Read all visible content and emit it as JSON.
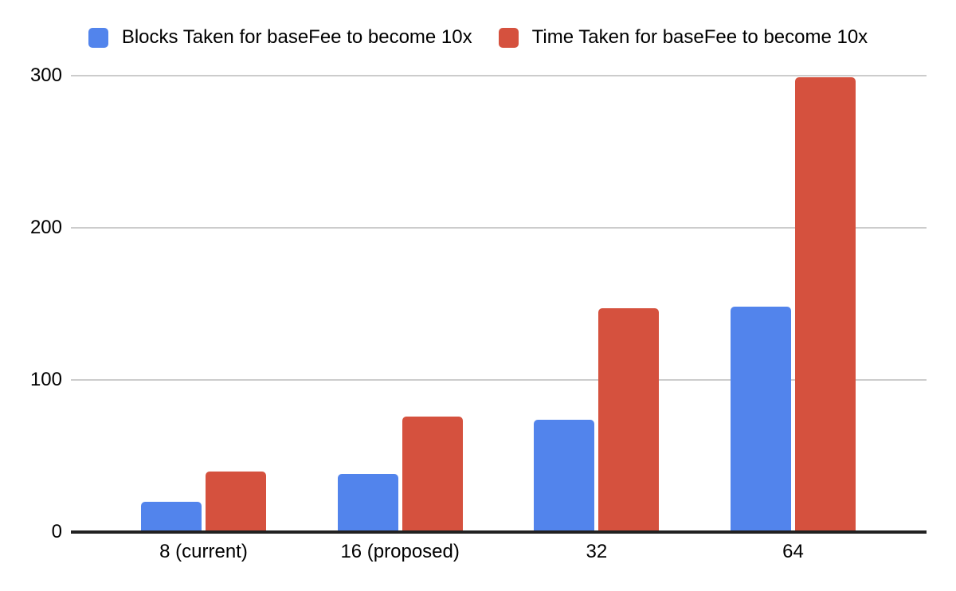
{
  "chart_data": {
    "type": "bar",
    "title": "",
    "categories": [
      "8 (current)",
      "16 (proposed)",
      "32",
      "64"
    ],
    "series": [
      {
        "name": "Blocks Taken for baseFee to become 10x",
        "color": "#5284EC",
        "values": [
          20,
          38,
          74,
          148
        ]
      },
      {
        "name": "Time Taken for baseFee to become 10x",
        "color": "#D5513E",
        "values": [
          40,
          76,
          147,
          299
        ]
      }
    ],
    "xlabel": "",
    "ylabel": "",
    "ylim": [
      0,
      300
    ],
    "yticks": [
      0,
      100,
      200,
      300
    ],
    "grid": true,
    "legend_position": "top",
    "grid_color": "#cccccc",
    "axis_color": "#212121",
    "background_color": "#ffffff",
    "text_color": "#000000"
  }
}
